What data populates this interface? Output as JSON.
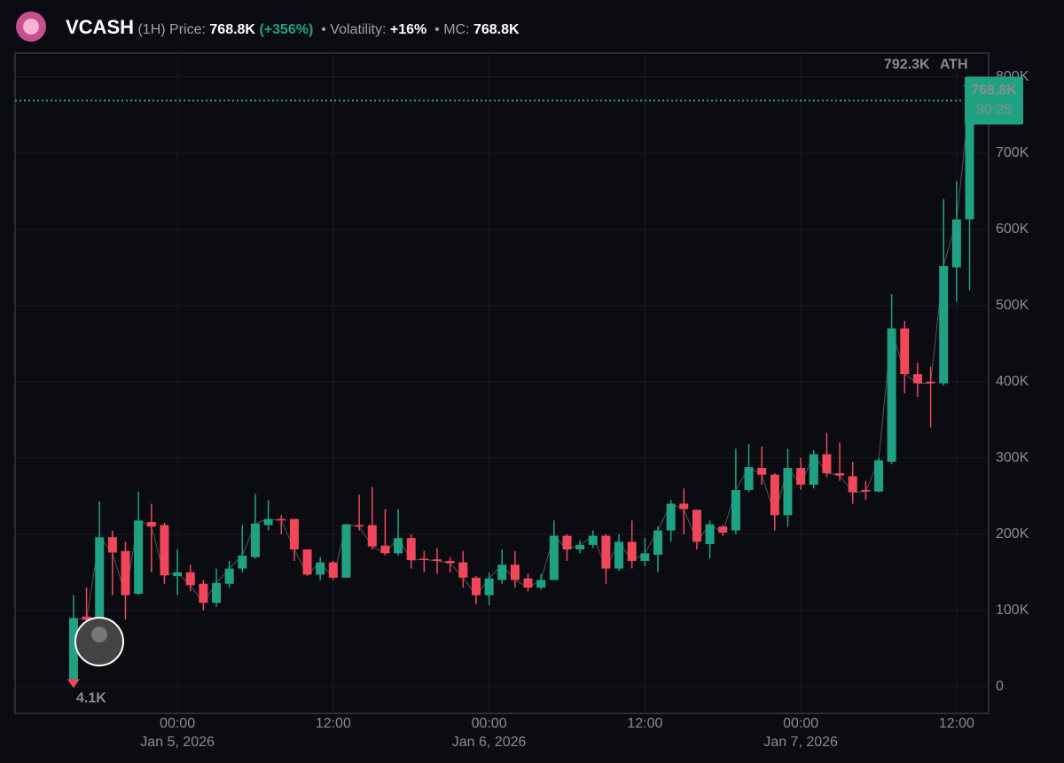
{
  "chart_data": {
    "type": "candlestick",
    "header": {
      "symbol": "VCASH",
      "interval": "(1H)",
      "price_caption": "Price:",
      "price": "768.8K",
      "change": "(+356%)",
      "volatility_caption": "• Volatility:",
      "volatility": "+16%",
      "mc_caption": "• MC:",
      "mc": "768.8K"
    },
    "x": [
      "2026-01-04T16:00",
      "2026-01-04T17:00",
      "2026-01-04T18:00",
      "2026-01-04T19:00",
      "2026-01-04T20:00",
      "2026-01-04T21:00",
      "2026-01-04T22:00",
      "2026-01-04T23:00",
      "2026-01-05T00:00",
      "2026-01-05T01:00",
      "2026-01-05T02:00",
      "2026-01-05T03:00",
      "2026-01-05T04:00",
      "2026-01-05T05:00",
      "2026-01-05T06:00",
      "2026-01-05T07:00",
      "2026-01-05T08:00",
      "2026-01-05T09:00",
      "2026-01-05T10:00",
      "2026-01-05T11:00",
      "2026-01-05T12:00",
      "2026-01-05T13:00",
      "2026-01-05T14:00",
      "2026-01-05T15:00",
      "2026-01-05T16:00",
      "2026-01-05T17:00",
      "2026-01-05T18:00",
      "2026-01-05T19:00",
      "2026-01-05T20:00",
      "2026-01-05T21:00",
      "2026-01-05T22:00",
      "2026-01-05T23:00",
      "2026-01-06T00:00",
      "2026-01-06T01:00",
      "2026-01-06T02:00",
      "2026-01-06T03:00",
      "2026-01-06T04:00",
      "2026-01-06T05:00",
      "2026-01-06T06:00",
      "2026-01-06T07:00",
      "2026-01-06T08:00",
      "2026-01-06T09:00",
      "2026-01-06T10:00",
      "2026-01-06T11:00",
      "2026-01-06T12:00",
      "2026-01-06T13:00",
      "2026-01-06T14:00",
      "2026-01-06T15:00",
      "2026-01-06T16:00",
      "2026-01-06T17:00",
      "2026-01-06T18:00",
      "2026-01-06T19:00",
      "2026-01-06T20:00",
      "2026-01-06T21:00",
      "2026-01-06T22:00",
      "2026-01-06T23:00",
      "2026-01-07T00:00",
      "2026-01-07T01:00",
      "2026-01-07T02:00",
      "2026-01-07T03:00",
      "2026-01-07T04:00",
      "2026-01-07T05:00",
      "2026-01-07T06:00",
      "2026-01-07T07:00",
      "2026-01-07T08:00",
      "2026-01-07T09:00",
      "2026-01-07T10:00",
      "2026-01-07T11:00",
      "2026-01-07T12:00",
      "2026-01-07T13:00"
    ],
    "open": [
      10000,
      92000,
      90000,
      196000,
      178000,
      122000,
      216000,
      212000,
      145000,
      150000,
      135000,
      110000,
      135000,
      155000,
      170000,
      212000,
      220000,
      220000,
      180000,
      147000,
      163000,
      143000,
      212000,
      212000,
      185000,
      175000,
      195000,
      168000,
      167000,
      165000,
      163000,
      143000,
      120000,
      140000,
      160000,
      142000,
      130000,
      140000,
      198000,
      180000,
      186000,
      198000,
      155000,
      190000,
      165000,
      173000,
      205000,
      240000,
      232000,
      187000,
      210000,
      205000,
      258000,
      287000,
      278000,
      225000,
      287000,
      265000,
      305000,
      280000,
      276000,
      258000,
      256000,
      295000,
      470000,
      410000,
      400000,
      398000,
      550000,
      613000
    ],
    "high": [
      120000,
      130000,
      243000,
      205000,
      190000,
      256000,
      240000,
      215000,
      180000,
      160000,
      140000,
      155000,
      165000,
      212000,
      253000,
      245000,
      225000,
      220000,
      180000,
      170000,
      165000,
      213000,
      252000,
      262000,
      233000,
      233000,
      200000,
      178000,
      182000,
      170000,
      178000,
      145000,
      150000,
      180000,
      178000,
      148000,
      148000,
      218000,
      200000,
      192000,
      205000,
      200000,
      200000,
      218000,
      195000,
      210000,
      245000,
      260000,
      232000,
      218000,
      212000,
      312000,
      318000,
      315000,
      280000,
      312000,
      300000,
      310000,
      333000,
      320000,
      295000,
      270000,
      300000,
      515000,
      480000,
      425000,
      420000,
      640000,
      663000,
      792300
    ],
    "low": [
      4100,
      80000,
      80000,
      120000,
      88000,
      120000,
      150000,
      135000,
      120000,
      125000,
      100000,
      105000,
      130000,
      150000,
      168000,
      205000,
      200000,
      165000,
      145000,
      140000,
      140000,
      143000,
      205000,
      180000,
      172000,
      172000,
      155000,
      150000,
      148000,
      150000,
      130000,
      108000,
      107000,
      135000,
      130000,
      125000,
      127000,
      140000,
      165000,
      175000,
      182000,
      135000,
      152000,
      155000,
      158000,
      150000,
      190000,
      200000,
      180000,
      168000,
      198000,
      200000,
      255000,
      265000,
      205000,
      210000,
      258000,
      260000,
      275000,
      270000,
      240000,
      245000,
      255000,
      292000,
      385000,
      380000,
      340000,
      395000,
      505000,
      520000
    ],
    "close": [
      90000,
      88000,
      196000,
      176000,
      120000,
      218000,
      210000,
      146000,
      150000,
      133000,
      110000,
      136000,
      155000,
      172000,
      214000,
      220000,
      218000,
      180000,
      147000,
      163000,
      143000,
      213000,
      210000,
      184000,
      175000,
      195000,
      166000,
      167000,
      165000,
      162000,
      143000,
      120000,
      142000,
      160000,
      140000,
      130000,
      140000,
      198000,
      180000,
      186000,
      198000,
      155000,
      190000,
      165000,
      175000,
      205000,
      240000,
      233000,
      190000,
      213000,
      202000,
      258000,
      288000,
      278000,
      225000,
      287000,
      265000,
      305000,
      280000,
      277000,
      255000,
      256000,
      297000,
      470000,
      410000,
      398000,
      398000,
      552000,
      613000,
      768800
    ],
    "up_color": "#1fa283",
    "down_color": "#f0485a",
    "ylim": [
      -35000,
      831000
    ],
    "yticks": [
      0,
      {
        "value": 100000,
        "label": "100K"
      },
      {
        "value": 200000,
        "label": "200K"
      },
      {
        "value": 300000,
        "label": "300K"
      },
      {
        "value": 400000,
        "label": "400K"
      },
      {
        "value": 500000,
        "label": "500K"
      },
      {
        "value": 600000,
        "label": "600K"
      },
      {
        "value": 700000,
        "label": "700K"
      },
      {
        "value": 800000,
        "label": "800K"
      }
    ],
    "xlim": [
      "2026-01-04T11:30",
      "2026-01-07T14:28"
    ],
    "xticks": [
      {
        "value": "2026-01-05T00:00",
        "label": "00:00",
        "date_label": "Jan 5, 2026"
      },
      {
        "value": "2026-01-05T12:00",
        "label": "12:00"
      },
      {
        "value": "2026-01-06T00:00",
        "label": "00:00",
        "date_label": "Jan 6, 2026"
      },
      {
        "value": "2026-01-06T12:00",
        "label": "12:00"
      },
      {
        "value": "2026-01-07T00:00",
        "label": "00:00",
        "date_label": "Jan 7, 2026"
      },
      {
        "value": "2026-01-07T12:00",
        "label": "12:00"
      }
    ],
    "grid": true,
    "annotations": {
      "ath_value_label": "792.3K",
      "ath_label": "ATH",
      "low_label": "4.1K",
      "last_price_label": "768.8K",
      "countdown": "30:25"
    }
  }
}
